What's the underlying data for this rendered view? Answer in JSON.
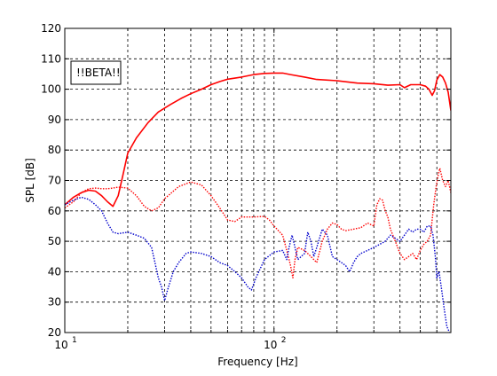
{
  "chart_data": {
    "type": "line",
    "xlabel": "Frequency [Hz]",
    "ylabel": "SPL [dB]",
    "xscale": "log",
    "xlim": [
      10,
      700
    ],
    "ylim": [
      20,
      120
    ],
    "grid": true,
    "x_ticks": [
      {
        "value": 10,
        "base": "10",
        "exp": "1"
      },
      {
        "value": 100,
        "base": "10",
        "exp": "2"
      }
    ],
    "y_ticks": [
      20,
      30,
      40,
      50,
      60,
      70,
      80,
      90,
      100,
      110,
      120
    ],
    "annotation": "!!BETA!!",
    "series": [
      {
        "color": "#ff0000",
        "style": "solid",
        "points": [
          [
            10,
            62
          ],
          [
            11,
            64.5
          ],
          [
            12,
            66
          ],
          [
            13,
            66.8
          ],
          [
            14,
            66.5
          ],
          [
            15,
            65
          ],
          [
            16,
            63
          ],
          [
            17,
            61.5
          ],
          [
            18,
            65
          ],
          [
            19,
            72
          ],
          [
            20,
            79
          ],
          [
            22,
            84
          ],
          [
            25,
            89
          ],
          [
            28,
            92.5
          ],
          [
            32,
            95
          ],
          [
            36,
            97
          ],
          [
            40,
            98.5
          ],
          [
            45,
            100
          ],
          [
            50,
            101.5
          ],
          [
            55,
            102.5
          ],
          [
            60,
            103.3
          ],
          [
            70,
            104
          ],
          [
            80,
            104.8
          ],
          [
            90,
            105.2
          ],
          [
            100,
            105.3
          ],
          [
            110,
            105.3
          ],
          [
            120,
            104.8
          ],
          [
            140,
            104
          ],
          [
            160,
            103.2
          ],
          [
            200,
            102.8
          ],
          [
            250,
            102
          ],
          [
            300,
            101.8
          ],
          [
            350,
            101.3
          ],
          [
            400,
            101.5
          ],
          [
            420,
            100.5
          ],
          [
            450,
            101.5
          ],
          [
            500,
            101.5
          ],
          [
            530,
            101
          ],
          [
            550,
            100
          ],
          [
            570,
            98
          ],
          [
            585,
            99.5
          ],
          [
            600,
            103
          ],
          [
            620,
            104.8
          ],
          [
            640,
            104
          ],
          [
            660,
            102
          ],
          [
            680,
            99
          ],
          [
            700,
            93
          ]
        ]
      },
      {
        "color": "#ff0000",
        "style": "dotted",
        "points": [
          [
            10,
            61
          ],
          [
            11,
            63
          ],
          [
            12,
            66
          ],
          [
            13,
            67.3
          ],
          [
            14,
            67.5
          ],
          [
            15,
            67.3
          ],
          [
            16,
            67.3
          ],
          [
            17,
            67.5
          ],
          [
            18,
            67.8
          ],
          [
            20,
            67.5
          ],
          [
            22,
            65
          ],
          [
            24,
            61.5
          ],
          [
            26,
            60
          ],
          [
            28,
            61
          ],
          [
            30,
            64
          ],
          [
            35,
            68
          ],
          [
            40,
            69.5
          ],
          [
            45,
            68.5
          ],
          [
            50,
            65
          ],
          [
            55,
            61
          ],
          [
            60,
            57
          ],
          [
            65,
            56.5
          ],
          [
            70,
            58
          ],
          [
            80,
            58
          ],
          [
            90,
            58.2
          ],
          [
            95,
            57
          ],
          [
            100,
            55
          ],
          [
            110,
            52
          ],
          [
            115,
            47
          ],
          [
            120,
            42
          ],
          [
            123,
            38
          ],
          [
            126,
            44
          ],
          [
            130,
            48
          ],
          [
            140,
            47
          ],
          [
            150,
            45
          ],
          [
            160,
            43
          ],
          [
            170,
            50
          ],
          [
            180,
            54
          ],
          [
            190,
            56
          ],
          [
            200,
            55.5
          ],
          [
            210,
            54
          ],
          [
            220,
            53.5
          ],
          [
            240,
            54
          ],
          [
            260,
            54.5
          ],
          [
            280,
            56
          ],
          [
            300,
            55
          ],
          [
            310,
            62
          ],
          [
            320,
            64
          ],
          [
            330,
            63.5
          ],
          [
            340,
            60
          ],
          [
            350,
            58
          ],
          [
            360,
            54
          ],
          [
            380,
            50
          ],
          [
            400,
            46
          ],
          [
            420,
            44
          ],
          [
            440,
            45
          ],
          [
            460,
            46
          ],
          [
            480,
            44
          ],
          [
            500,
            47
          ],
          [
            520,
            49
          ],
          [
            540,
            50
          ],
          [
            560,
            52
          ],
          [
            580,
            62
          ],
          [
            595,
            68
          ],
          [
            610,
            72
          ],
          [
            620,
            74
          ],
          [
            640,
            70
          ],
          [
            660,
            68
          ],
          [
            680,
            70
          ],
          [
            700,
            66
          ]
        ]
      },
      {
        "color": "#0000cc",
        "style": "dotted",
        "points": [
          [
            10,
            62
          ],
          [
            11,
            63.5
          ],
          [
            12,
            64.5
          ],
          [
            13,
            63.8
          ],
          [
            14,
            62
          ],
          [
            15,
            60
          ],
          [
            16,
            56
          ],
          [
            17,
            53
          ],
          [
            18,
            52.5
          ],
          [
            20,
            53
          ],
          [
            22,
            52
          ],
          [
            24,
            51
          ],
          [
            26,
            48
          ],
          [
            28,
            38
          ],
          [
            29,
            35
          ],
          [
            30,
            30.5
          ],
          [
            31,
            34
          ],
          [
            33,
            40
          ],
          [
            35,
            43
          ],
          [
            38,
            46
          ],
          [
            40,
            46.5
          ],
          [
            45,
            46
          ],
          [
            50,
            45
          ],
          [
            55,
            43
          ],
          [
            60,
            42
          ],
          [
            65,
            40
          ],
          [
            70,
            38
          ],
          [
            75,
            35
          ],
          [
            78,
            34
          ],
          [
            82,
            38
          ],
          [
            90,
            44
          ],
          [
            100,
            46.5
          ],
          [
            110,
            47
          ],
          [
            115,
            44
          ],
          [
            118,
            48
          ],
          [
            122,
            52
          ],
          [
            126,
            48
          ],
          [
            130,
            44
          ],
          [
            140,
            46
          ],
          [
            145,
            53
          ],
          [
            150,
            50
          ],
          [
            155,
            45
          ],
          [
            160,
            48
          ],
          [
            170,
            54
          ],
          [
            180,
            52
          ],
          [
            190,
            45
          ],
          [
            200,
            44
          ],
          [
            210,
            43
          ],
          [
            220,
            42
          ],
          [
            230,
            40
          ],
          [
            240,
            43
          ],
          [
            250,
            45
          ],
          [
            260,
            46
          ],
          [
            280,
            47
          ],
          [
            300,
            48
          ],
          [
            320,
            49
          ],
          [
            340,
            50
          ],
          [
            360,
            52
          ],
          [
            380,
            51
          ],
          [
            400,
            50
          ],
          [
            420,
            52
          ],
          [
            440,
            54
          ],
          [
            460,
            53
          ],
          [
            480,
            54
          ],
          [
            500,
            54
          ],
          [
            520,
            53
          ],
          [
            540,
            55
          ],
          [
            560,
            55
          ],
          [
            575,
            52
          ],
          [
            590,
            45
          ],
          [
            600,
            38
          ],
          [
            615,
            40
          ],
          [
            630,
            35
          ],
          [
            650,
            28
          ],
          [
            670,
            22
          ],
          [
            690,
            20
          ]
        ]
      }
    ]
  }
}
